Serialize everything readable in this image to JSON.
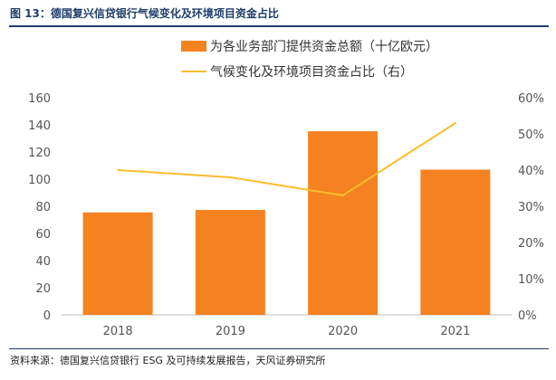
{
  "figure_title": "图 13：德国复兴信贷银行气候变化及环境项目资金占比",
  "source": "资料来源：德国复兴信贷银行 ESG 及可持续发展报告，天风证券研究所",
  "colors": {
    "bar": "#f58220",
    "line": "#fbbd2e",
    "title": "#1f3d6b",
    "axis": "#bfbfbf"
  },
  "chart_data": {
    "type": "bar",
    "categories": [
      "2018",
      "2019",
      "2020",
      "2021"
    ],
    "series": [
      {
        "name": "为各业务部门提供资金总额（十亿欧元）",
        "type": "bar",
        "axis": "left",
        "values": [
          75.5,
          77.3,
          135.3,
          107.0
        ]
      },
      {
        "name": "气候变化及环境项目资金占比（右）",
        "type": "line",
        "axis": "right",
        "values": [
          40,
          38,
          33,
          53
        ]
      }
    ],
    "y_left": {
      "min": 0,
      "max": 160,
      "ticks": [
        "0",
        "20",
        "40",
        "60",
        "80",
        "100",
        "120",
        "140",
        "160"
      ]
    },
    "y_right": {
      "min": 0,
      "max": 60,
      "ticks": [
        "0%",
        "10%",
        "20%",
        "30%",
        "40%",
        "50%",
        "60%"
      ]
    },
    "legend_position": "top",
    "grid": false
  }
}
